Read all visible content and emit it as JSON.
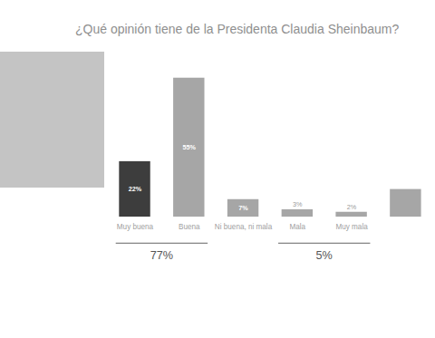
{
  "chart_data": {
    "type": "bar",
    "title": "¿Qué opinión tiene de la Presidenta Claudia Sheinbaum?",
    "categories": [
      "Muy buena",
      "Buena",
      "Ni buena, ni mala",
      "Mala",
      "Muy mala",
      null
    ],
    "values": [
      22,
      55,
      7,
      3,
      2,
      11
    ],
    "value_labels": [
      "22%",
      "55%",
      "7%",
      "3%",
      "2%",
      null
    ],
    "colors": [
      "#3d3d3d",
      "#a6a6a6",
      "#a6a6a6",
      "#a6a6a6",
      "#a6a6a6",
      "#a6a6a6"
    ],
    "ylim": [
      0,
      60
    ],
    "tick_labels": "x",
    "data_labels": true,
    "annotations": [
      {
        "text": "77%",
        "categories": [
          "Muy buena",
          "Buena"
        ]
      },
      {
        "text": "5%",
        "categories": [
          "Mala",
          "Muy mala"
        ]
      }
    ]
  }
}
